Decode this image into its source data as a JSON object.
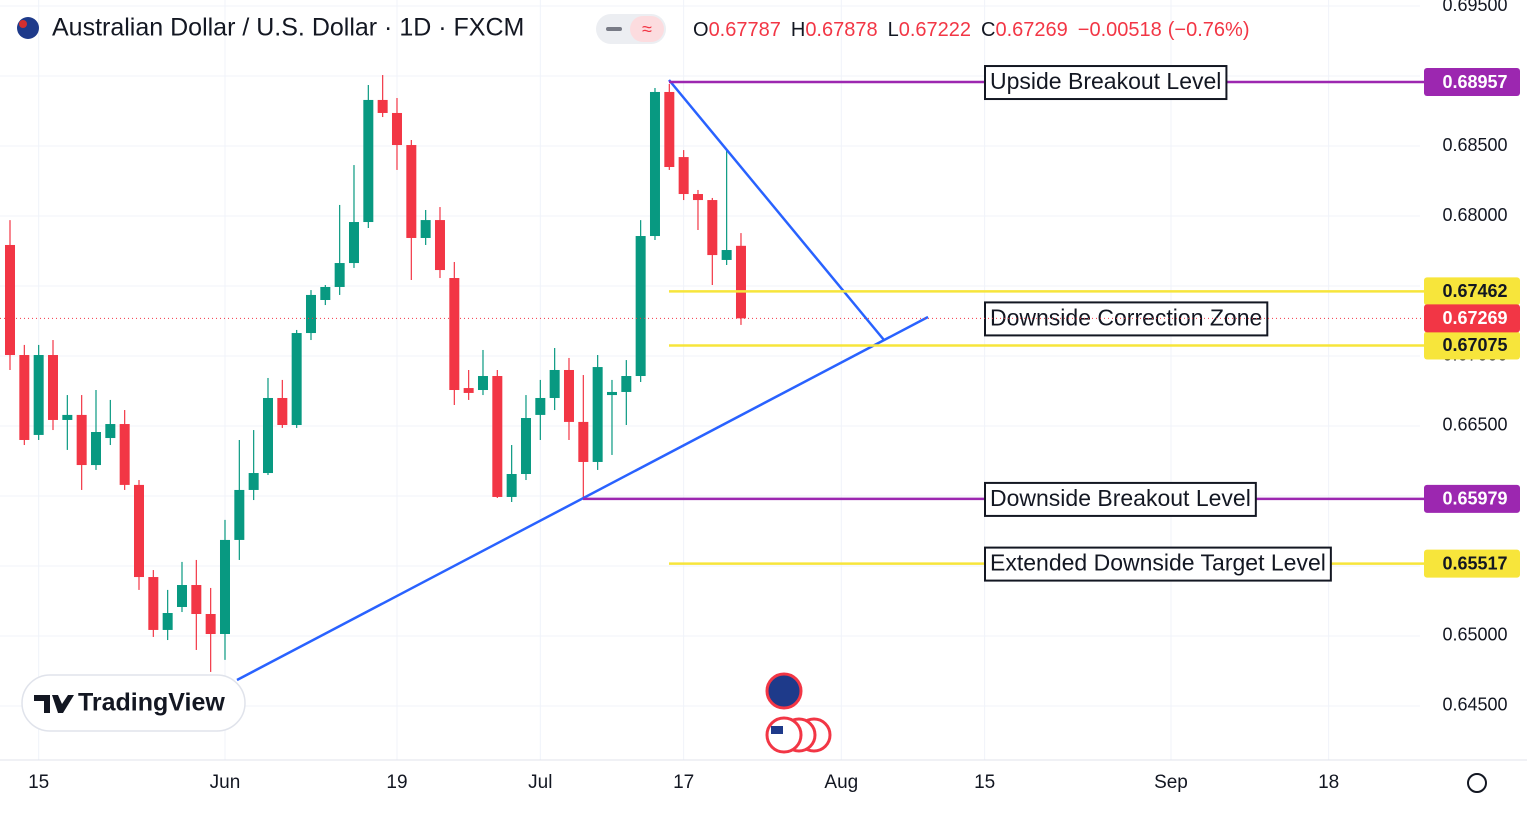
{
  "chart_data": {
    "type": "candlestick",
    "title": "Australian Dollar / U.S. Dollar · 1D · FXCM",
    "header": {
      "letters": [
        "O",
        "H",
        "L",
        "C"
      ],
      "change": {
        "value": -0.00518,
        "label": "−0.00518"
      },
      "change_pct": {
        "value": -0.76,
        "label": "(−0.76%)"
      }
    },
    "watermark": "TradingView",
    "categories": [
      null,
      null,
      "15",
      null,
      null,
      null,
      null,
      null,
      null,
      null,
      null,
      null,
      null,
      null,
      null,
      "Jun",
      null,
      null,
      null,
      null,
      null,
      null,
      null,
      null,
      null,
      null,
      null,
      "19",
      null,
      null,
      null,
      null,
      null,
      null,
      null,
      null,
      null,
      "Jul",
      null,
      null,
      null,
      null,
      null,
      null,
      null,
      null,
      null,
      "17",
      null,
      null,
      null,
      null,
      null,
      null,
      null,
      null,
      null,
      null,
      "Aug",
      null,
      null,
      null,
      null,
      null,
      null,
      null,
      null,
      null,
      "15",
      null,
      null,
      null,
      null,
      null,
      null,
      null,
      null,
      null,
      null,
      null,
      null,
      "Sep",
      null,
      null,
      null,
      null,
      null,
      null,
      null,
      null,
      null,
      null,
      "18",
      null,
      null,
      null,
      null,
      null,
      null
    ],
    "open": [
      0.67793,
      0.67007,
      0.66436,
      0.67007,
      0.66543,
      0.66579,
      0.66221,
      0.66414,
      0.66514,
      0.66079,
      0.65421,
      0.65043,
      0.65207,
      0.65364,
      0.65157,
      0.65014,
      0.65686,
      0.66043,
      0.66164,
      0.667,
      0.66507,
      0.67164,
      0.674,
      0.67493,
      0.67664,
      0.67957,
      0.68829,
      0.68736,
      0.68507,
      0.67843,
      0.67971,
      0.67557,
      0.66771,
      0.66757,
      0.66857,
      0.65993,
      0.66157,
      0.66579,
      0.667,
      0.669,
      0.66529,
      0.66243,
      0.66721,
      0.66743,
      0.66857,
      0.67857,
      0.68886,
      0.68421,
      0.68157,
      0.68114,
      0.67686,
      0.67787,
      null,
      null,
      null,
      null,
      null,
      null,
      null,
      null,
      null,
      null,
      null,
      null,
      null,
      null,
      null,
      null,
      null,
      null,
      null,
      null,
      null,
      null,
      null,
      null,
      null,
      null,
      null,
      null,
      null,
      null,
      null,
      null,
      null,
      null,
      null,
      null,
      null,
      null,
      null,
      null,
      null,
      null,
      null,
      null,
      null,
      null,
      null
    ],
    "high": [
      0.67971,
      0.67079,
      0.67079,
      0.67114,
      0.66721,
      0.66721,
      0.66757,
      0.66686,
      0.66614,
      0.66114,
      0.65471,
      0.65329,
      0.65529,
      0.65543,
      0.65343,
      0.65829,
      0.664,
      0.66471,
      0.66843,
      0.66829,
      0.67186,
      0.67471,
      0.67507,
      0.68079,
      0.68364,
      0.68936,
      0.69007,
      0.68843,
      0.68543,
      0.68043,
      0.68064,
      0.67671,
      0.669,
      0.67043,
      0.669,
      0.66364,
      0.66721,
      0.66829,
      0.67057,
      0.66986,
      0.66864,
      0.67007,
      0.66829,
      0.66971,
      0.67971,
      0.68914,
      0.68943,
      0.68471,
      0.68186,
      0.68129,
      0.68471,
      0.67878,
      null,
      null,
      null,
      null,
      null,
      null,
      null,
      null,
      null,
      null,
      null,
      null,
      null,
      null,
      null,
      null,
      null,
      null,
      null,
      null,
      null,
      null,
      null,
      null,
      null,
      null,
      null,
      null,
      null,
      null,
      null,
      null,
      null,
      null,
      null,
      null,
      null,
      null,
      null,
      null,
      null,
      null,
      null,
      null,
      null,
      null,
      null
    ],
    "low": [
      0.669,
      0.66364,
      0.664,
      0.66471,
      0.66329,
      0.66043,
      0.66186,
      0.66364,
      0.66043,
      0.65329,
      0.64993,
      0.64971,
      0.65171,
      0.649,
      0.64743,
      0.64829,
      0.65543,
      0.65971,
      0.6615,
      0.66486,
      0.66486,
      0.67114,
      0.67364,
      0.67436,
      0.67629,
      0.67914,
      0.68707,
      0.68329,
      0.67543,
      0.67793,
      0.67557,
      0.6665,
      0.66686,
      0.66721,
      0.65986,
      0.65957,
      0.66114,
      0.664,
      0.66614,
      0.664,
      0.65986,
      0.66186,
      0.66293,
      0.66507,
      0.66814,
      0.67829,
      0.68329,
      0.68114,
      0.679,
      0.67507,
      0.6765,
      0.67222,
      null,
      null,
      null,
      null,
      null,
      null,
      null,
      null,
      null,
      null,
      null,
      null,
      null,
      null,
      null,
      null,
      null,
      null,
      null,
      null,
      null,
      null,
      null,
      null,
      null,
      null,
      null,
      null,
      null,
      null,
      null,
      null,
      null,
      null,
      null,
      null,
      null,
      null,
      null,
      null,
      null,
      null,
      null,
      null,
      null,
      null,
      null
    ],
    "close": [
      0.67007,
      0.664,
      0.67007,
      0.66543,
      0.66579,
      0.66221,
      0.66457,
      0.66514,
      0.66079,
      0.65421,
      0.65043,
      0.65164,
      0.65364,
      0.65157,
      0.65014,
      0.65686,
      0.66043,
      0.66164,
      0.667,
      0.66507,
      0.67164,
      0.67436,
      0.67493,
      0.67664,
      0.67957,
      0.68829,
      0.68736,
      0.68507,
      0.67843,
      0.67971,
      0.67614,
      0.66757,
      0.66736,
      0.66857,
      0.65993,
      0.66157,
      0.66557,
      0.667,
      0.669,
      0.66529,
      0.66243,
      0.66921,
      0.66743,
      0.66857,
      0.67857,
      0.68886,
      0.6835,
      0.68157,
      0.68114,
      0.67721,
      0.67757,
      0.67269,
      null,
      null,
      null,
      null,
      null,
      null,
      null,
      null,
      null,
      null,
      null,
      null,
      null,
      null,
      null,
      null,
      null,
      null,
      null,
      null,
      null,
      null,
      null,
      null,
      null,
      null,
      null,
      null,
      null,
      null,
      null,
      null,
      null,
      null,
      null,
      null,
      null,
      null,
      null,
      null,
      null,
      null,
      null,
      null,
      null,
      null,
      null
    ],
    "up_color": "#089981",
    "down_color": "#f23645",
    "ylim": [
      0.64114,
      0.69543
    ],
    "yticks": [
      {
        "value": 0.645,
        "label": "0.64500"
      },
      {
        "value": 0.65,
        "label": "0.65000"
      },
      {
        "value": 0.655,
        "label": "0.65500"
      },
      {
        "value": 0.66,
        "label": "0.66000"
      },
      {
        "value": 0.665,
        "label": "0.66500"
      },
      {
        "value": 0.67,
        "label": "0.67000"
      },
      {
        "value": 0.675,
        "label": "0.67500"
      },
      {
        "value": 0.68,
        "label": "0.68000"
      },
      {
        "value": 0.685,
        "label": "0.68500"
      },
      {
        "value": 0.69,
        "label": "0.69000"
      },
      {
        "value": 0.695,
        "label": "0.69500"
      }
    ],
    "grid": true,
    "last_price": 0.67269,
    "levels": [
      {
        "name": "Upside Breakout Level",
        "values": [
          0.68957
        ],
        "color": "#9c27b0",
        "text_color": "#ffffff"
      },
      {
        "name": "Downside Correction Zone",
        "values": [
          0.67462,
          0.67075
        ],
        "color": "#f7e53b",
        "text_color": "#131722"
      },
      {
        "name": "Downside Breakout Level",
        "values": [
          0.65979
        ],
        "color": "#9c27b0",
        "text_color": "#ffffff"
      },
      {
        "name": "Extended Downside Target Level",
        "values": [
          0.65517
        ],
        "color": "#f7e53b",
        "text_color": "#131722"
      }
    ]
  }
}
